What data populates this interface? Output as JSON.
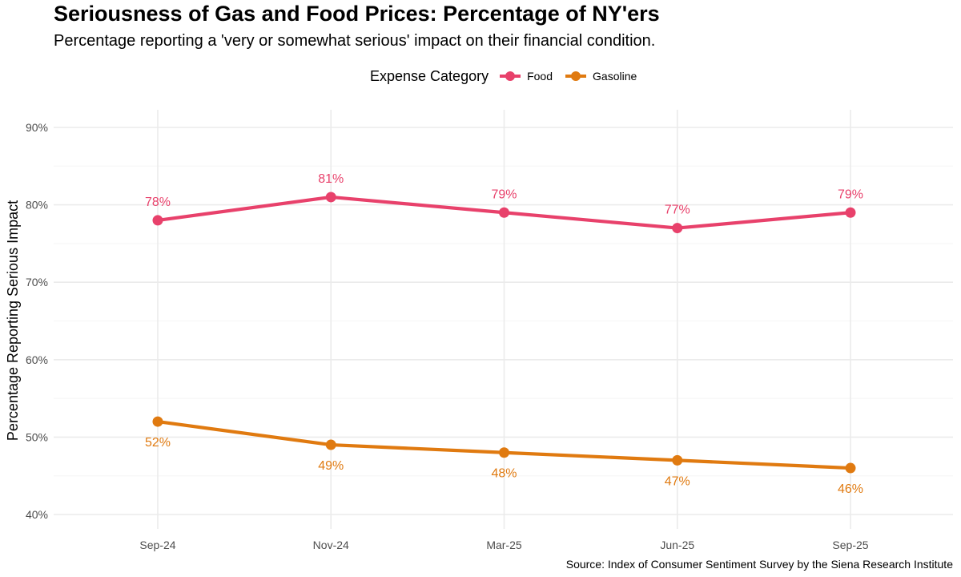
{
  "chart_data": {
    "type": "line",
    "title": "Seriousness of Gas and Food Prices: Percentage of NY'ers",
    "subtitle": "Percentage reporting a 'very or somewhat serious' impact on their financial condition.",
    "xlabel": "",
    "ylabel": "Percentage Reporting Serious Impact",
    "caption": "Source: Index of Consumer Sentiment Survey by the Siena Research Institute",
    "legend_title": "Expense Category",
    "legend_position": "top",
    "categories": [
      "Sep-24",
      "Nov-24",
      "Mar-25",
      "Jun-25",
      "Sep-25"
    ],
    "ylim": [
      40,
      90
    ],
    "yticks": [
      40,
      50,
      60,
      70,
      80,
      90
    ],
    "ytick_labels": [
      "40%",
      "50%",
      "60%",
      "70%",
      "80%",
      "90%"
    ],
    "grid": true,
    "series": [
      {
        "name": "Food",
        "color": "#e8416b",
        "values": [
          78,
          81,
          79,
          77,
          79
        ],
        "labels": [
          "78%",
          "81%",
          "79%",
          "77%",
          "79%"
        ],
        "label_position": "above"
      },
      {
        "name": "Gasoline",
        "color": "#e07a10",
        "values": [
          52,
          49,
          48,
          47,
          46
        ],
        "labels": [
          "52%",
          "49%",
          "48%",
          "47%",
          "46%"
        ],
        "label_position": "below"
      }
    ]
  }
}
